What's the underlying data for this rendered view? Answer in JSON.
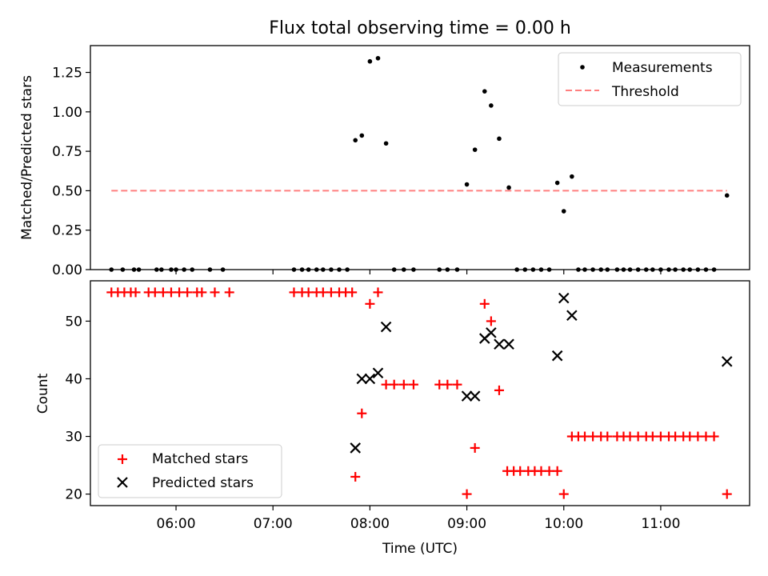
{
  "title": "Flux total observing time = 0.00 h",
  "chart_data": [
    {
      "type": "scatter",
      "panel": "top",
      "title": "Flux total observing time = 0.00 h",
      "xlabel": "",
      "ylabel": "Matched/Predicted stars",
      "xlim": [
        "05:07",
        "11:55"
      ],
      "ylim": [
        0,
        1.42
      ],
      "yticks": [
        "0.00",
        "0.25",
        "0.50",
        "0.75",
        "1.00",
        "1.25"
      ],
      "grid": false,
      "legend_position": "upper-right",
      "series": [
        {
          "name": "Measurements",
          "kind": "points",
          "color": "#000000",
          "points": [
            [
              "05:20",
              0
            ],
            [
              "05:27",
              0
            ],
            [
              "05:34",
              0
            ],
            [
              "05:37",
              0
            ],
            [
              "05:48",
              0
            ],
            [
              "05:51",
              0
            ],
            [
              "05:57",
              0
            ],
            [
              "06:00",
              0
            ],
            [
              "06:05",
              0
            ],
            [
              "06:10",
              0
            ],
            [
              "06:21",
              0
            ],
            [
              "06:29",
              0
            ],
            [
              "07:13",
              0
            ],
            [
              "07:18",
              0
            ],
            [
              "07:22",
              0
            ],
            [
              "07:27",
              0
            ],
            [
              "07:31",
              0
            ],
            [
              "07:36",
              0
            ],
            [
              "07:41",
              0
            ],
            [
              "07:46",
              0
            ],
            [
              "07:51",
              0.82
            ],
            [
              "07:55",
              0.85
            ],
            [
              "08:00",
              1.32
            ],
            [
              "08:05",
              1.34
            ],
            [
              "08:10",
              0.8
            ],
            [
              "08:15",
              0
            ],
            [
              "08:21",
              0
            ],
            [
              "08:27",
              0
            ],
            [
              "08:43",
              0
            ],
            [
              "08:48",
              0
            ],
            [
              "08:54",
              0
            ],
            [
              "09:00",
              0.54
            ],
            [
              "09:05",
              0.76
            ],
            [
              "09:11",
              1.13
            ],
            [
              "09:15",
              1.04
            ],
            [
              "09:20",
              0.83
            ],
            [
              "09:26",
              0.52
            ],
            [
              "09:31",
              0
            ],
            [
              "09:36",
              0
            ],
            [
              "09:41",
              0
            ],
            [
              "09:46",
              0
            ],
            [
              "09:51",
              0
            ],
            [
              "09:56",
              0.55
            ],
            [
              "10:00",
              0.37
            ],
            [
              "10:05",
              0.59
            ],
            [
              "10:09",
              0
            ],
            [
              "10:13",
              0
            ],
            [
              "10:18",
              0
            ],
            [
              "10:23",
              0
            ],
            [
              "10:27",
              0
            ],
            [
              "10:33",
              0
            ],
            [
              "10:37",
              0
            ],
            [
              "10:41",
              0
            ],
            [
              "10:46",
              0
            ],
            [
              "10:51",
              0
            ],
            [
              "10:55",
              0
            ],
            [
              "11:00",
              0
            ],
            [
              "11:05",
              0
            ],
            [
              "11:09",
              0
            ],
            [
              "11:14",
              0
            ],
            [
              "11:18",
              0
            ],
            [
              "11:23",
              0
            ],
            [
              "11:28",
              0
            ],
            [
              "11:33",
              0
            ],
            [
              "11:41",
              0.47
            ]
          ]
        },
        {
          "name": "Threshold",
          "kind": "dashed-line",
          "color": "#ff7f7f",
          "x": [
            "05:20",
            "11:41"
          ],
          "values": [
            0.5,
            0.5
          ]
        }
      ]
    },
    {
      "type": "scatter",
      "panel": "bottom",
      "xlabel": "Time (UTC)",
      "ylabel": "Count",
      "xlim": [
        "05:07",
        "11:55"
      ],
      "ylim": [
        18,
        57
      ],
      "xticks": [
        "06:00",
        "07:00",
        "08:00",
        "09:00",
        "10:00",
        "11:00"
      ],
      "yticks": [
        "20",
        "30",
        "40",
        "50"
      ],
      "grid": false,
      "legend_position": "lower-left",
      "series": [
        {
          "name": "Matched stars",
          "marker": "+",
          "color": "#ff0000",
          "points": [
            [
              "05:20",
              55
            ],
            [
              "05:24",
              55
            ],
            [
              "05:28",
              55
            ],
            [
              "05:32",
              55
            ],
            [
              "05:35",
              55
            ],
            [
              "05:43",
              55
            ],
            [
              "05:47",
              55
            ],
            [
              "05:52",
              55
            ],
            [
              "05:57",
              55
            ],
            [
              "06:02",
              55
            ],
            [
              "06:07",
              55
            ],
            [
              "06:13",
              55
            ],
            [
              "06:16",
              55
            ],
            [
              "06:24",
              55
            ],
            [
              "06:33",
              55
            ],
            [
              "07:13",
              55
            ],
            [
              "07:18",
              55
            ],
            [
              "07:22",
              55
            ],
            [
              "07:27",
              55
            ],
            [
              "07:31",
              55
            ],
            [
              "07:36",
              55
            ],
            [
              "07:41",
              55
            ],
            [
              "07:45",
              55
            ],
            [
              "07:49",
              55
            ],
            [
              "07:51",
              23
            ],
            [
              "07:55",
              34
            ],
            [
              "08:00",
              53
            ],
            [
              "08:05",
              55
            ],
            [
              "08:10",
              39
            ],
            [
              "08:15",
              39
            ],
            [
              "08:21",
              39
            ],
            [
              "08:27",
              39
            ],
            [
              "08:43",
              39
            ],
            [
              "08:48",
              39
            ],
            [
              "08:54",
              39
            ],
            [
              "09:00",
              20
            ],
            [
              "09:05",
              28
            ],
            [
              "09:11",
              53
            ],
            [
              "09:15",
              50
            ],
            [
              "09:20",
              38
            ],
            [
              "09:25",
              24
            ],
            [
              "09:29",
              24
            ],
            [
              "09:33",
              24
            ],
            [
              "09:38",
              24
            ],
            [
              "09:42",
              24
            ],
            [
              "09:46",
              24
            ],
            [
              "09:51",
              24
            ],
            [
              "09:56",
              24
            ],
            [
              "10:00",
              20
            ],
            [
              "10:05",
              30
            ],
            [
              "10:09",
              30
            ],
            [
              "10:13",
              30
            ],
            [
              "10:18",
              30
            ],
            [
              "10:23",
              30
            ],
            [
              "10:27",
              30
            ],
            [
              "10:33",
              30
            ],
            [
              "10:37",
              30
            ],
            [
              "10:41",
              30
            ],
            [
              "10:46",
              30
            ],
            [
              "10:51",
              30
            ],
            [
              "10:55",
              30
            ],
            [
              "11:00",
              30
            ],
            [
              "11:05",
              30
            ],
            [
              "11:09",
              30
            ],
            [
              "11:14",
              30
            ],
            [
              "11:18",
              30
            ],
            [
              "11:23",
              30
            ],
            [
              "11:28",
              30
            ],
            [
              "11:33",
              30
            ],
            [
              "11:41",
              20
            ]
          ]
        },
        {
          "name": "Predicted stars",
          "marker": "x",
          "color": "#000000",
          "points": [
            [
              "07:51",
              28
            ],
            [
              "07:55",
              40
            ],
            [
              "08:00",
              40
            ],
            [
              "08:05",
              41
            ],
            [
              "08:10",
              49
            ],
            [
              "09:00",
              37
            ],
            [
              "09:05",
              37
            ],
            [
              "09:11",
              47
            ],
            [
              "09:15",
              48
            ],
            [
              "09:20",
              46
            ],
            [
              "09:26",
              46
            ],
            [
              "09:56",
              44
            ],
            [
              "10:00",
              54
            ],
            [
              "10:05",
              51
            ],
            [
              "11:41",
              43
            ]
          ]
        }
      ]
    }
  ]
}
